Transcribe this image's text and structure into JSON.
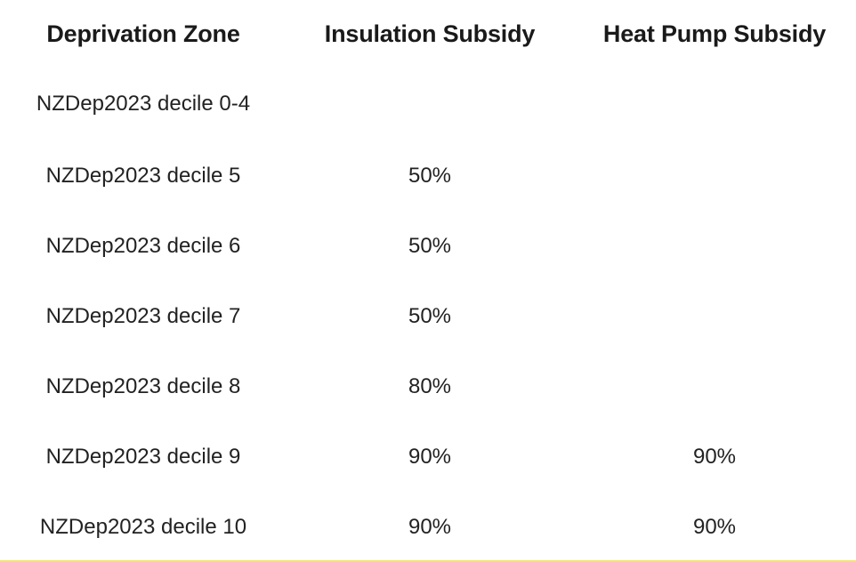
{
  "table": {
    "headers": [
      "Deprivation Zone",
      "Insulation Subsidy",
      "Heat Pump Subsidy"
    ],
    "rows": [
      {
        "zone": "NZDep2023 decile 0-4",
        "insulation": "",
        "heat_pump": ""
      },
      {
        "zone": "NZDep2023 decile 5",
        "insulation": "50%",
        "heat_pump": ""
      },
      {
        "zone": "NZDep2023 decile 6",
        "insulation": "50%",
        "heat_pump": ""
      },
      {
        "zone": "NZDep2023 decile 7",
        "insulation": "50%",
        "heat_pump": ""
      },
      {
        "zone": "NZDep2023 decile 8",
        "insulation": "80%",
        "heat_pump": ""
      },
      {
        "zone": "NZDep2023 decile 9",
        "insulation": "90%",
        "heat_pump": "90%"
      },
      {
        "zone": "NZDep2023 decile 10",
        "insulation": "90%",
        "heat_pump": "90%"
      }
    ]
  },
  "colors": {
    "text": "#222222",
    "bottom_rule": "#f3e27a"
  }
}
